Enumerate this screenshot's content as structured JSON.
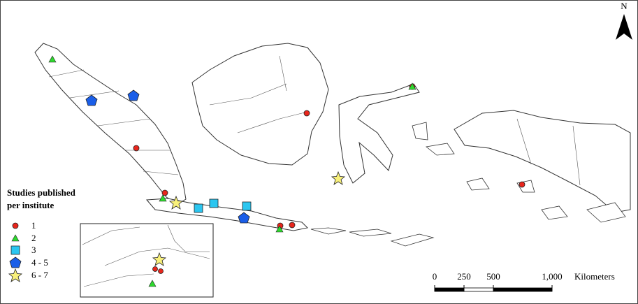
{
  "map": {
    "north": "N",
    "legend": {
      "title_lines": [
        "Studies published",
        "per institute"
      ],
      "items": [
        "1",
        "2",
        "3",
        "4 - 5",
        "6 - 7"
      ]
    },
    "scale": {
      "ticks": [
        0,
        250,
        500,
        {
          "value": 1000,
          "label": "1,000"
        }
      ],
      "unit": "Kilometers"
    }
  }
}
